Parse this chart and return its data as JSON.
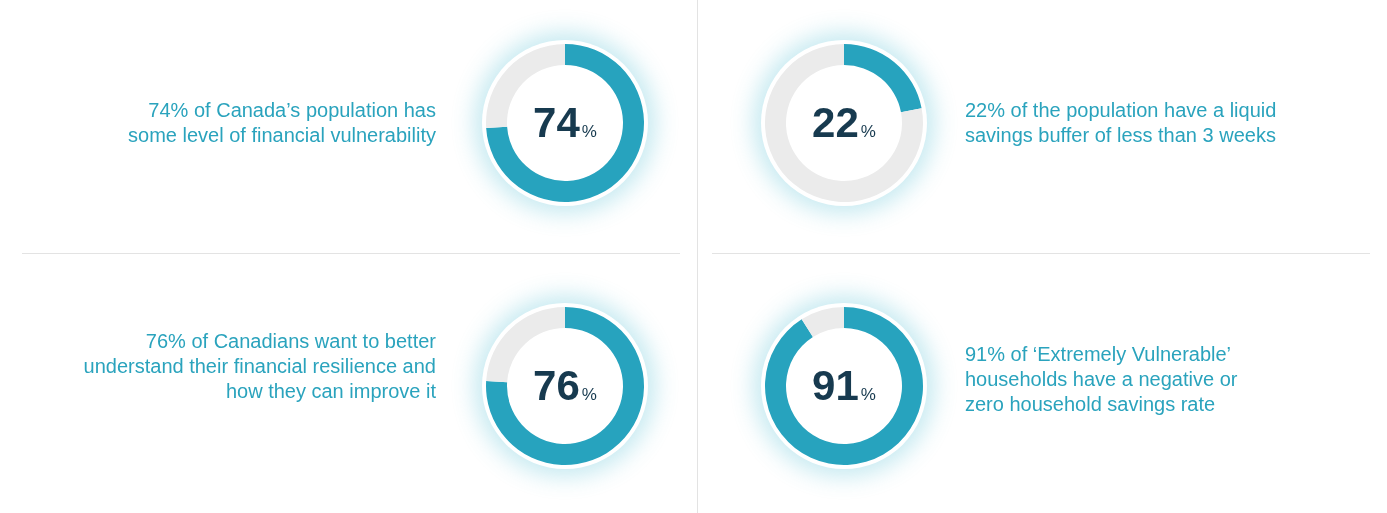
{
  "chart_data": [
    {
      "type": "donut",
      "title": "74% of Canada’s population has\nsome level of financial vulnerability",
      "categories": [
        null,
        null
      ],
      "values": [
        74,
        26
      ],
      "colors": [
        "#27a3be",
        "#ebebeb"
      ],
      "value_labels": [
        "74%",
        null
      ]
    },
    {
      "type": "donut",
      "title": "22% of the population have a liquid\nsavings buffer of less than 3 weeks",
      "categories": [
        null,
        null
      ],
      "values": [
        22,
        78
      ],
      "colors": [
        "#27a3be",
        "#ebebeb"
      ],
      "value_labels": [
        "22%",
        null
      ]
    },
    {
      "type": "donut",
      "title": "76% of Canadians want to better\nunderstand their financial resilience and\nhow they can improve it",
      "categories": [
        null,
        null
      ],
      "values": [
        76,
        24
      ],
      "colors": [
        "#27a3be",
        "#ebebeb"
      ],
      "value_labels": [
        "76%",
        null
      ]
    },
    {
      "type": "donut",
      "title": "91% of ‘Extremely Vulnerable’\nhouseholds have a negative or\nzero household savings rate",
      "categories": [
        null,
        null
      ],
      "values": [
        91,
        9
      ],
      "colors": [
        "#27a3be",
        "#ebebeb"
      ],
      "value_labels": [
        "91%",
        null
      ]
    }
  ]
}
